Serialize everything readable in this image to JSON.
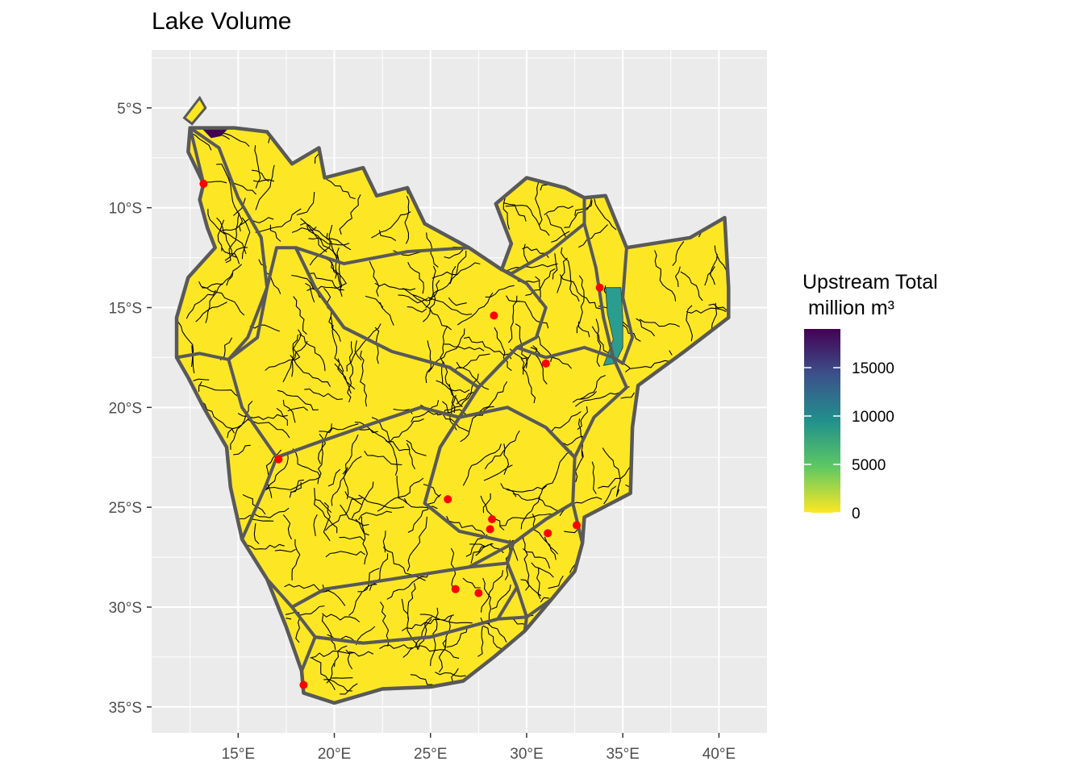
{
  "title": "Lake Volume",
  "colors": {
    "panel_bg": "#ebebeb",
    "grid": "#ffffff",
    "region_fill": "#fde725",
    "basin_border": "#595959",
    "river": "#000000",
    "point": "#ff0000",
    "lake_malawi": "#2a9d8f",
    "lake_north": "#440154"
  },
  "legend": {
    "title_line1": "Upstream Total",
    "title_line2": " million m³",
    "breaks": [
      "15000",
      "10000",
      "5000",
      "0"
    ],
    "gradient": [
      "#440154",
      "#3b528b",
      "#21908c",
      "#5dc863",
      "#fde725"
    ]
  },
  "chart_data": {
    "type": "map",
    "title": "Lake Volume",
    "x_ticks": [
      "15°E",
      "20°E",
      "25°E",
      "30°E",
      "35°E",
      "40°E"
    ],
    "y_ticks": [
      "5°S",
      "10°S",
      "15°S",
      "20°S",
      "25°S",
      "30°S",
      "35°S"
    ],
    "xlim": [
      10.5,
      42.5
    ],
    "ylim": [
      -36.3,
      -2.1
    ],
    "fill_scale": {
      "name": "Upstream Total million m³",
      "min": 0,
      "max": 19000,
      "breaks": [
        0,
        5000,
        10000,
        15000
      ]
    },
    "points": [
      {
        "lon": 13.2,
        "lat": -8.8
      },
      {
        "lon": 33.8,
        "lat": -14.0
      },
      {
        "lon": 28.3,
        "lat": -15.4
      },
      {
        "lon": 31.0,
        "lat": -17.8
      },
      {
        "lon": 17.1,
        "lat": -22.6
      },
      {
        "lon": 25.9,
        "lat": -24.6
      },
      {
        "lon": 28.2,
        "lat": -25.6
      },
      {
        "lon": 28.1,
        "lat": -26.1
      },
      {
        "lon": 32.6,
        "lat": -25.9
      },
      {
        "lon": 31.1,
        "lat": -26.3
      },
      {
        "lon": 26.3,
        "lat": -29.1
      },
      {
        "lon": 27.5,
        "lat": -29.3
      },
      {
        "lon": 18.4,
        "lat": -33.9
      }
    ],
    "outline": [
      [
        12.5,
        -6.0
      ],
      [
        14.8,
        -6.0
      ],
      [
        16.5,
        -6.2
      ],
      [
        17.8,
        -7.8
      ],
      [
        19.2,
        -7.0
      ],
      [
        19.5,
        -8.5
      ],
      [
        21.5,
        -8.0
      ],
      [
        22.2,
        -9.4
      ],
      [
        23.8,
        -9.0
      ],
      [
        24.7,
        -10.8
      ],
      [
        27.0,
        -12.0
      ],
      [
        28.7,
        -13.1
      ],
      [
        29.2,
        -11.8
      ],
      [
        28.4,
        -9.8
      ],
      [
        30.0,
        -8.5
      ],
      [
        32.0,
        -9.0
      ],
      [
        33.0,
        -9.5
      ],
      [
        34.1,
        -9.4
      ],
      [
        35.2,
        -12.0
      ],
      [
        38.5,
        -11.5
      ],
      [
        40.3,
        -10.5
      ],
      [
        40.5,
        -14.0
      ],
      [
        40.5,
        -15.5
      ],
      [
        38.2,
        -17.2
      ],
      [
        35.8,
        -18.9
      ],
      [
        35.5,
        -21.0
      ],
      [
        35.4,
        -24.3
      ],
      [
        33.0,
        -25.5
      ],
      [
        32.9,
        -26.8
      ],
      [
        32.5,
        -28.2
      ],
      [
        31.3,
        -29.6
      ],
      [
        29.9,
        -31.2
      ],
      [
        28.3,
        -32.5
      ],
      [
        26.7,
        -33.7
      ],
      [
        25.0,
        -34.0
      ],
      [
        22.5,
        -34.1
      ],
      [
        20.0,
        -34.8
      ],
      [
        18.4,
        -34.3
      ],
      [
        18.3,
        -33.2
      ],
      [
        17.5,
        -31.0
      ],
      [
        16.5,
        -28.6
      ],
      [
        15.2,
        -26.6
      ],
      [
        14.6,
        -24.0
      ],
      [
        14.4,
        -22.0
      ],
      [
        13.2,
        -20.0
      ],
      [
        12.4,
        -18.5
      ],
      [
        11.8,
        -17.5
      ],
      [
        11.8,
        -15.5
      ],
      [
        12.4,
        -13.5
      ],
      [
        13.8,
        -12.0
      ],
      [
        13.4,
        -11.0
      ],
      [
        13.0,
        -9.6
      ],
      [
        13.2,
        -8.8
      ],
      [
        12.4,
        -7.2
      ]
    ],
    "basins": [
      [
        [
          12.5,
          -6.0
        ],
        [
          13.2,
          -8.8
        ],
        [
          13.0,
          -9.6
        ],
        [
          13.4,
          -11.0
        ],
        [
          13.8,
          -12.0
        ],
        [
          12.4,
          -13.5
        ],
        [
          11.8,
          -15.5
        ],
        [
          11.8,
          -17.5
        ],
        [
          13.0,
          -17.3
        ],
        [
          14.5,
          -17.6
        ],
        [
          15.5,
          -16.5
        ],
        [
          16.5,
          -14.0
        ],
        [
          16.2,
          -11.5
        ],
        [
          15.0,
          -9.5
        ],
        [
          14.0,
          -7.0
        ]
      ],
      [
        [
          16.5,
          -14.0
        ],
        [
          16.0,
          -16.5
        ],
        [
          14.5,
          -17.6
        ],
        [
          15.2,
          -20.0
        ],
        [
          17.0,
          -22.5
        ],
        [
          19.0,
          -21.8
        ],
        [
          22.0,
          -20.8
        ],
        [
          24.5,
          -20.0
        ],
        [
          26.5,
          -20.5
        ],
        [
          27.5,
          -19.0
        ],
        [
          26.0,
          -18.0
        ],
        [
          23.0,
          -17.2
        ],
        [
          20.5,
          -16.0
        ],
        [
          19.0,
          -14.0
        ],
        [
          18.0,
          -12.0
        ],
        [
          17.0,
          -12.0
        ]
      ],
      [
        [
          18.0,
          -12.0
        ],
        [
          20.5,
          -12.8
        ],
        [
          23.8,
          -12.2
        ],
        [
          27.0,
          -12.0
        ],
        [
          28.7,
          -13.1
        ],
        [
          30.0,
          -13.8
        ],
        [
          31.0,
          -15.0
        ],
        [
          30.5,
          -16.5
        ],
        [
          29.5,
          -17.0
        ],
        [
          27.5,
          -19.0
        ],
        [
          26.0,
          -18.0
        ],
        [
          23.0,
          -17.2
        ],
        [
          20.5,
          -16.0
        ],
        [
          19.0,
          -14.0
        ]
      ],
      [
        [
          28.4,
          -9.8
        ],
        [
          30.0,
          -8.5
        ],
        [
          32.0,
          -9.0
        ],
        [
          33.0,
          -9.5
        ],
        [
          33.0,
          -10.8
        ],
        [
          31.2,
          -12.2
        ],
        [
          29.2,
          -13.3
        ],
        [
          28.7,
          -13.1
        ],
        [
          29.2,
          -11.8
        ]
      ],
      [
        [
          17.0,
          -22.5
        ],
        [
          19.0,
          -21.8
        ],
        [
          22.0,
          -20.8
        ],
        [
          24.5,
          -20.0
        ],
        [
          26.5,
          -20.5
        ],
        [
          25.5,
          -22.0
        ],
        [
          24.7,
          -24.8
        ],
        [
          26.5,
          -26.2
        ],
        [
          29.3,
          -26.8
        ],
        [
          27.0,
          -28.0
        ],
        [
          23.0,
          -28.6
        ],
        [
          19.5,
          -29.1
        ],
        [
          17.8,
          -30.0
        ],
        [
          16.5,
          -28.6
        ],
        [
          15.2,
          -26.6
        ],
        [
          16.4,
          -24.0
        ]
      ],
      [
        [
          26.5,
          -20.5
        ],
        [
          29.0,
          -20.0
        ],
        [
          31.0,
          -21.0
        ],
        [
          32.5,
          -22.5
        ],
        [
          32.4,
          -24.8
        ],
        [
          31.0,
          -25.6
        ],
        [
          29.3,
          -26.8
        ],
        [
          26.5,
          -26.2
        ],
        [
          24.7,
          -24.8
        ],
        [
          25.5,
          -22.0
        ]
      ],
      [
        [
          27.5,
          -19.0
        ],
        [
          29.5,
          -17.0
        ],
        [
          31.0,
          -17.5
        ],
        [
          33.0,
          -17.0
        ],
        [
          34.5,
          -17.5
        ],
        [
          35.2,
          -19.0
        ],
        [
          33.5,
          -20.5
        ],
        [
          32.5,
          -22.5
        ],
        [
          31.0,
          -21.0
        ],
        [
          29.0,
          -20.0
        ],
        [
          26.5,
          -20.5
        ]
      ],
      [
        [
          34.1,
          -9.4
        ],
        [
          35.2,
          -12.0
        ],
        [
          35.0,
          -14.5
        ],
        [
          35.5,
          -16.5
        ],
        [
          35.0,
          -17.8
        ],
        [
          34.5,
          -17.5
        ],
        [
          34.0,
          -15.5
        ],
        [
          33.6,
          -13.0
        ],
        [
          33.0,
          -10.8
        ],
        [
          33.0,
          -9.5
        ]
      ],
      [
        [
          29.3,
          -26.8
        ],
        [
          31.0,
          -25.6
        ],
        [
          32.4,
          -24.8
        ],
        [
          32.9,
          -26.8
        ],
        [
          32.5,
          -28.2
        ],
        [
          31.3,
          -29.6
        ],
        [
          30.0,
          -30.5
        ],
        [
          29.5,
          -29.0
        ],
        [
          29.0,
          -27.8
        ]
      ],
      [
        [
          19.5,
          -29.1
        ],
        [
          23.0,
          -28.6
        ],
        [
          27.0,
          -28.0
        ],
        [
          29.0,
          -27.8
        ],
        [
          29.5,
          -29.0
        ],
        [
          28.5,
          -30.6
        ],
        [
          25.0,
          -31.5
        ],
        [
          21.5,
          -31.8
        ],
        [
          19.0,
          -31.5
        ],
        [
          17.8,
          -30.0
        ]
      ],
      [
        [
          19.0,
          -31.5
        ],
        [
          21.5,
          -31.8
        ],
        [
          25.0,
          -31.5
        ],
        [
          28.5,
          -30.6
        ],
        [
          30.0,
          -30.5
        ],
        [
          29.9,
          -31.2
        ],
        [
          28.3,
          -32.5
        ],
        [
          26.7,
          -33.7
        ],
        [
          25.0,
          -34.0
        ],
        [
          22.5,
          -34.1
        ],
        [
          20.0,
          -34.8
        ],
        [
          18.4,
          -34.3
        ],
        [
          18.3,
          -33.2
        ]
      ]
    ],
    "lakes": [
      {
        "name": "",
        "fill": "#2a9d8f",
        "coords": [
          [
            34.1,
            -14.0
          ],
          [
            34.9,
            -14.0
          ],
          [
            35.0,
            -15.5
          ],
          [
            35.0,
            -17.0
          ],
          [
            34.6,
            -17.8
          ],
          [
            34.0,
            -17.9
          ],
          [
            34.5,
            -16.6
          ],
          [
            34.2,
            -15.3
          ]
        ]
      },
      {
        "name": "",
        "fill": "#440154",
        "coords": [
          [
            13.1,
            -6.0
          ],
          [
            14.5,
            -6.0
          ],
          [
            14.1,
            -6.4
          ],
          [
            13.6,
            -6.5
          ]
        ]
      }
    ]
  }
}
